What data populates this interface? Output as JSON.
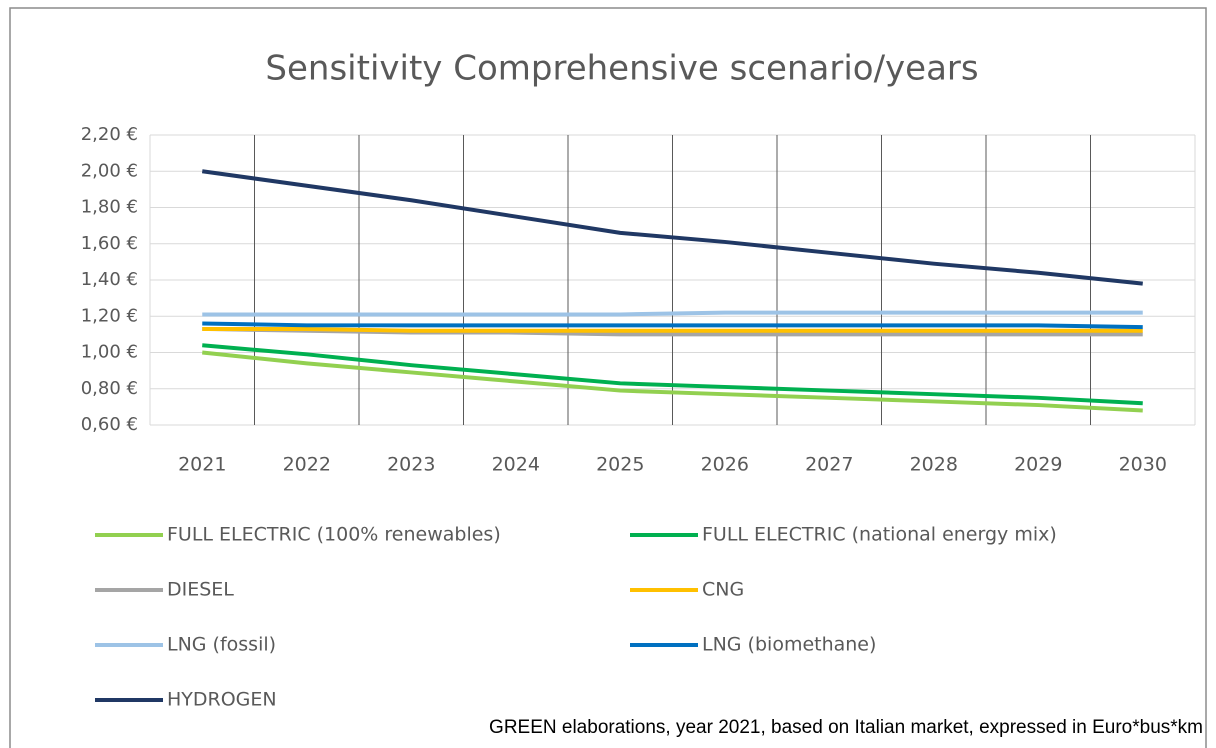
{
  "chart_data": {
    "type": "line",
    "title": "Sensitivity Comprehensive scenario/years",
    "categories": [
      "2021",
      "2022",
      "2023",
      "2024",
      "2025",
      "2026",
      "2027",
      "2028",
      "2029",
      "2030"
    ],
    "series": [
      {
        "name": "FULL ELECTRIC (100% renewables)",
        "color": "#92d050",
        "values": [
          1.0,
          0.94,
          0.89,
          0.84,
          0.79,
          0.77,
          0.75,
          0.73,
          0.71,
          0.68
        ]
      },
      {
        "name": "FULL ELECTRIC (national energy mix)",
        "color": "#00b050",
        "values": [
          1.04,
          0.99,
          0.93,
          0.88,
          0.83,
          0.81,
          0.79,
          0.77,
          0.75,
          0.72
        ]
      },
      {
        "name": "DIESEL",
        "color": "#a5a5a5",
        "values": [
          1.13,
          1.12,
          1.11,
          1.11,
          1.1,
          1.1,
          1.1,
          1.1,
          1.1,
          1.1
        ]
      },
      {
        "name": "CNG",
        "color": "#ffc000",
        "values": [
          1.13,
          1.13,
          1.12,
          1.12,
          1.12,
          1.12,
          1.12,
          1.12,
          1.12,
          1.12
        ]
      },
      {
        "name": "LNG (fossil)",
        "color": "#9dc3e6",
        "values": [
          1.21,
          1.21,
          1.21,
          1.21,
          1.21,
          1.22,
          1.22,
          1.22,
          1.22,
          1.22
        ]
      },
      {
        "name": "LNG (biomethane)",
        "color": "#0070c0",
        "values": [
          1.16,
          1.15,
          1.15,
          1.15,
          1.15,
          1.15,
          1.15,
          1.15,
          1.15,
          1.14
        ]
      },
      {
        "name": "HYDROGEN",
        "color": "#203864",
        "values": [
          2.0,
          1.92,
          1.84,
          1.75,
          1.66,
          1.61,
          1.55,
          1.49,
          1.44,
          1.38
        ]
      }
    ],
    "ylim": [
      0.6,
      2.2
    ],
    "yticks": [
      {
        "value": 0.6,
        "label": "0,60 €"
      },
      {
        "value": 0.8,
        "label": "0,80 €"
      },
      {
        "value": 1.0,
        "label": "1,00 €"
      },
      {
        "value": 1.2,
        "label": "1,20 €"
      },
      {
        "value": 1.4,
        "label": "1,40 €"
      },
      {
        "value": 1.6,
        "label": "1,60 €"
      },
      {
        "value": 1.8,
        "label": "1,80 €"
      },
      {
        "value": 2.0,
        "label": "2,00 €"
      },
      {
        "value": 2.2,
        "label": "2,20 €"
      }
    ],
    "grid": true,
    "legend": "bottom",
    "source": "GREEN elaborations, year 2021, based on Italian market, expressed in Euro*bus*km"
  }
}
